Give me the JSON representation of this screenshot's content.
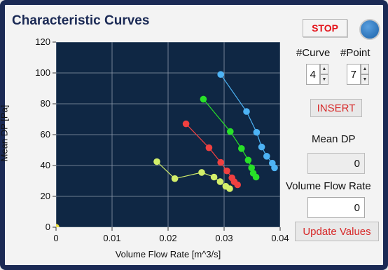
{
  "title": "Characteristic Curves",
  "controls": {
    "stop_label": "STOP",
    "led_color": "#3a84cc",
    "curve_label": "#Curve",
    "curve_value": "4",
    "point_label": "#Point",
    "point_value": "7",
    "insert_label": "INSERT",
    "mean_dp_label": "Mean DP",
    "mean_dp_value": "0",
    "vfr_label": "Volume Flow Rate",
    "vfr_value": "0",
    "update_label": "Update Values",
    "spin_up_icon": "triangle-up",
    "spin_down_icon": "triangle-down"
  },
  "chart_data": {
    "type": "scatter",
    "title": "Characteristic Curves",
    "xlabel": "Volume Flow Rate [m^3/s]",
    "ylabel": "Mean DP [Pa]",
    "xlim": [
      0,
      0.04
    ],
    "ylim": [
      0,
      120
    ],
    "xticks": [
      0,
      0.01,
      0.02,
      0.03,
      0.04
    ],
    "xtick_labels": [
      "0",
      "0.01",
      "0.02",
      "0.03",
      "0.04"
    ],
    "yticks": [
      0,
      20,
      40,
      60,
      80,
      100,
      120
    ],
    "ytick_labels": [
      "0",
      "20",
      "40",
      "60",
      "80",
      "100",
      "120"
    ],
    "grid": true,
    "background": "#0f2744",
    "series": [
      {
        "color": "#4db3f5",
        "points": [
          [
            0.0294,
            99
          ],
          [
            0.034,
            75
          ],
          [
            0.0358,
            61.5
          ],
          [
            0.0367,
            52
          ],
          [
            0.0376,
            46
          ],
          [
            0.0386,
            41.5
          ],
          [
            0.039,
            38.5
          ]
        ]
      },
      {
        "color": "#28e028",
        "points": [
          [
            0.0263,
            83
          ],
          [
            0.0311,
            62
          ],
          [
            0.0331,
            51
          ],
          [
            0.0343,
            43.5
          ],
          [
            0.0349,
            38.5
          ],
          [
            0.0352,
            35
          ],
          [
            0.0357,
            32.5
          ]
        ]
      },
      {
        "color": "#f04040",
        "points": [
          [
            0.0232,
            67
          ],
          [
            0.0273,
            51.5
          ],
          [
            0.0294,
            42
          ],
          [
            0.0305,
            36.5
          ],
          [
            0.0314,
            32
          ],
          [
            0.0318,
            29.5
          ],
          [
            0.0324,
            27.5
          ]
        ]
      },
      {
        "color": "#d2ee6a",
        "points": [
          [
            0.018,
            42.5
          ],
          [
            0.0212,
            31.5
          ],
          [
            0.026,
            35.5
          ],
          [
            0.0282,
            32.5
          ],
          [
            0.0293,
            29.5
          ],
          [
            0.0303,
            26.5
          ],
          [
            0.031,
            25
          ]
        ]
      },
      {
        "color": "#ece048",
        "points": [
          [
            0.0,
            0
          ]
        ]
      }
    ]
  }
}
